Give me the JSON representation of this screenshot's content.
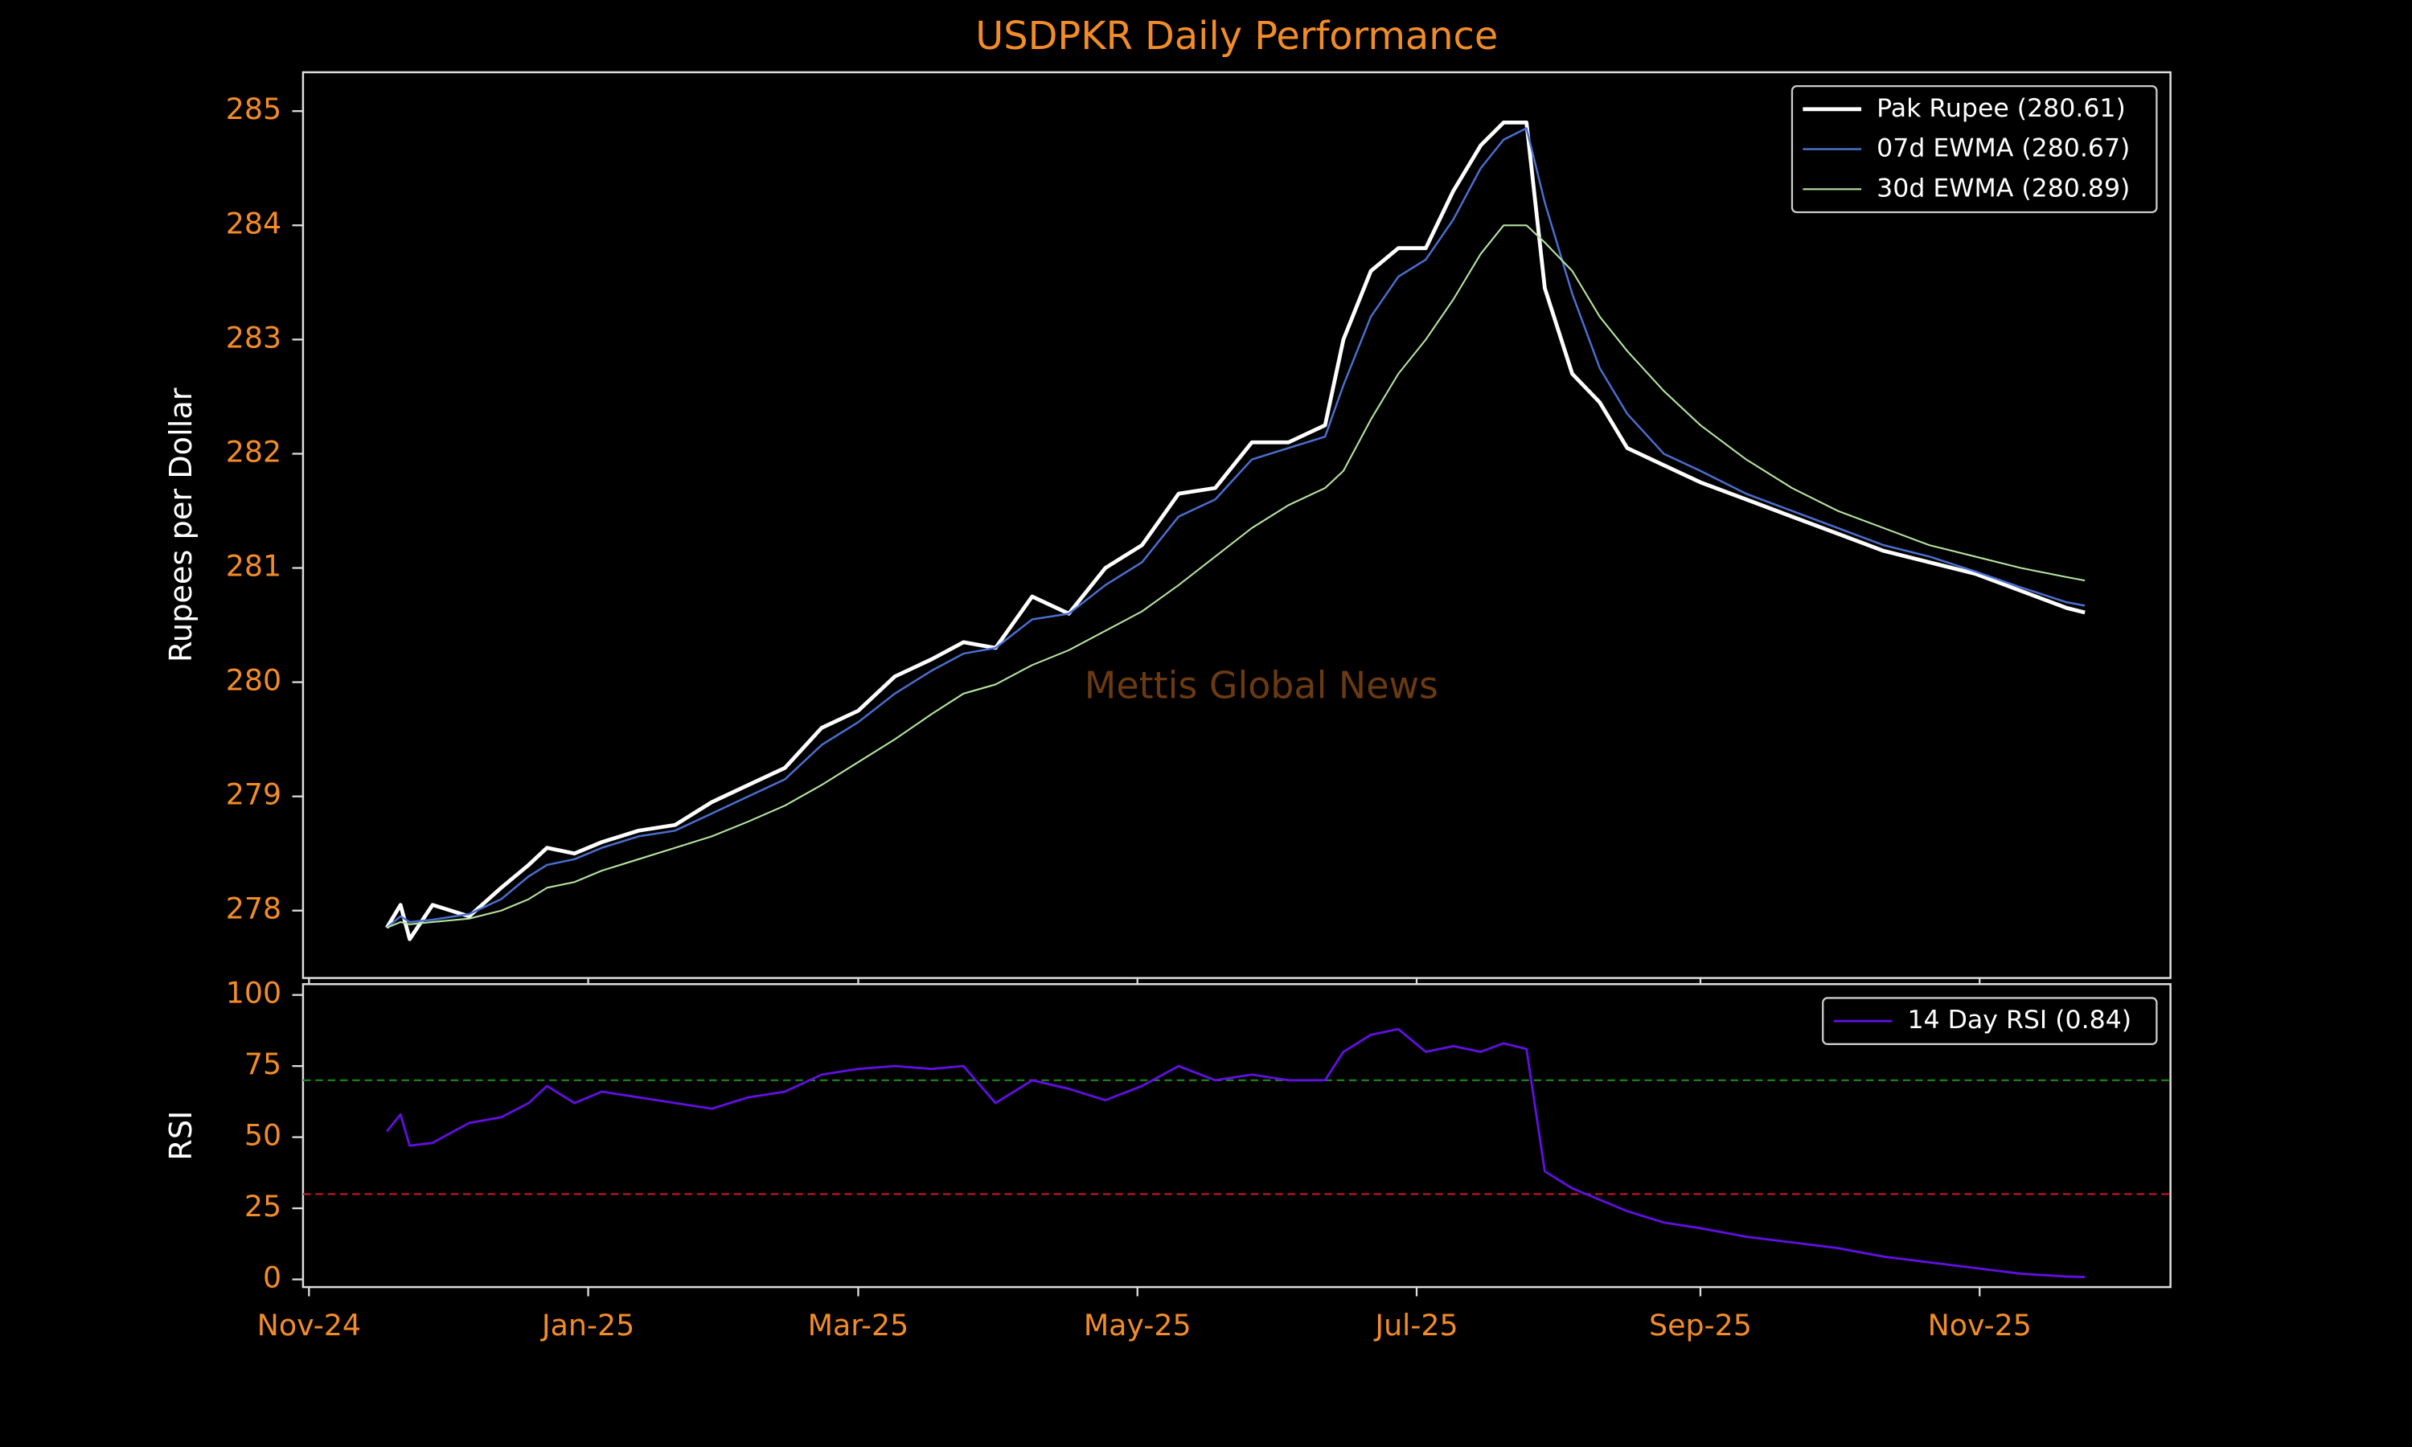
{
  "chart_data": [
    {
      "type": "line",
      "title": "USDPKR Daily Performance",
      "ylabel": "Rupees per Dollar",
      "annotation": "Mettis Global News",
      "x": [
        17,
        20,
        22,
        27,
        35,
        42,
        48,
        52,
        58,
        64,
        72,
        80,
        88,
        96,
        104,
        112,
        120,
        128,
        136,
        143,
        150,
        158,
        166,
        174,
        182,
        190,
        198,
        206,
        214,
        222,
        226,
        232,
        238,
        244,
        250,
        256,
        261,
        266,
        270,
        276,
        282,
        288,
        296,
        304,
        314,
        324,
        334,
        344,
        354,
        364,
        374,
        384,
        388
      ],
      "xlim": [
        -1.3,
        406.7
      ],
      "ylim": [
        277.41,
        285.34
      ],
      "yticks": [
        278,
        279,
        280,
        281,
        282,
        283,
        284,
        285
      ],
      "legend": "upper right",
      "series": [
        {
          "name": "Pak Rupee (280.61)",
          "color": "#ffffff",
          "width": 2.5,
          "values": [
            277.85,
            278.05,
            277.75,
            278.05,
            277.95,
            278.2,
            278.4,
            278.55,
            278.5,
            278.6,
            278.7,
            278.75,
            278.95,
            279.1,
            279.25,
            279.6,
            279.75,
            280.05,
            280.2,
            280.35,
            280.3,
            280.75,
            280.6,
            281.0,
            281.2,
            281.65,
            281.7,
            282.1,
            282.1,
            282.25,
            283.0,
            283.6,
            283.8,
            283.8,
            284.3,
            284.7,
            284.9,
            284.9,
            283.45,
            282.7,
            282.45,
            282.05,
            281.9,
            281.75,
            281.6,
            281.45,
            281.3,
            281.15,
            281.05,
            280.95,
            280.8,
            280.65,
            280.61
          ]
        },
        {
          "name": "07d EWMA (280.67)",
          "color": "#4a6fd0",
          "width": 1.3,
          "values": [
            277.85,
            277.95,
            277.9,
            277.92,
            277.97,
            278.1,
            278.3,
            278.4,
            278.45,
            278.55,
            278.65,
            278.7,
            278.85,
            279.0,
            279.15,
            279.45,
            279.65,
            279.9,
            280.1,
            280.25,
            280.3,
            280.55,
            280.6,
            280.85,
            281.05,
            281.45,
            281.6,
            281.95,
            282.05,
            282.15,
            282.6,
            283.2,
            283.55,
            283.7,
            284.05,
            284.5,
            284.75,
            284.85,
            284.2,
            283.4,
            282.75,
            282.35,
            282.0,
            281.85,
            281.65,
            281.5,
            281.35,
            281.2,
            281.1,
            280.97,
            280.83,
            280.7,
            280.67
          ]
        },
        {
          "name": "30d EWMA (280.89)",
          "color": "#b5e3a0",
          "width": 1.1,
          "values": [
            277.85,
            277.9,
            277.88,
            277.9,
            277.93,
            278.0,
            278.1,
            278.2,
            278.25,
            278.35,
            278.45,
            278.55,
            278.65,
            278.78,
            278.92,
            279.1,
            279.3,
            279.5,
            279.72,
            279.9,
            279.98,
            280.15,
            280.28,
            280.45,
            280.62,
            280.85,
            281.1,
            281.35,
            281.55,
            281.7,
            281.85,
            282.3,
            282.7,
            283.0,
            283.35,
            283.75,
            284.0,
            284.0,
            283.85,
            283.6,
            283.2,
            282.9,
            282.55,
            282.25,
            281.95,
            281.7,
            281.5,
            281.35,
            281.2,
            281.1,
            281.0,
            280.92,
            280.89
          ]
        }
      ]
    },
    {
      "type": "line",
      "ylabel": "RSI",
      "x": [
        17,
        20,
        22,
        27,
        35,
        42,
        48,
        52,
        58,
        64,
        72,
        80,
        88,
        96,
        104,
        112,
        120,
        128,
        136,
        143,
        150,
        158,
        166,
        174,
        182,
        190,
        198,
        206,
        214,
        222,
        226,
        232,
        238,
        244,
        250,
        256,
        261,
        266,
        270,
        276,
        282,
        288,
        296,
        304,
        314,
        324,
        334,
        344,
        354,
        364,
        374,
        384,
        388
      ],
      "xlim": [
        -1.3,
        406.7
      ],
      "ylim": [
        -2.7,
        103.8
      ],
      "yticks": [
        0,
        25,
        50,
        75,
        100
      ],
      "xticks": [
        {
          "value": 0,
          "label": "Nov-24"
        },
        {
          "value": 61,
          "label": "Jan-25"
        },
        {
          "value": 120,
          "label": "Mar-25"
        },
        {
          "value": 181,
          "label": "May-25"
        },
        {
          "value": 242,
          "label": "Jul-25"
        },
        {
          "value": 304,
          "label": "Sep-25"
        },
        {
          "value": 365,
          "label": "Nov-25"
        }
      ],
      "legend": "upper right",
      "hlines": [
        {
          "value": 70,
          "color": "#1d7a1d"
        },
        {
          "value": 30,
          "color": "#c0142a"
        }
      ],
      "series": [
        {
          "name": "14 Day RSI (0.84)",
          "color": "#6010e0",
          "width": 1.5,
          "values": [
            52,
            58,
            47,
            48,
            55,
            57,
            62,
            68,
            62,
            66,
            64,
            62,
            60,
            64,
            66,
            72,
            74,
            75,
            74,
            75,
            62,
            70,
            67,
            63,
            68,
            75,
            70,
            72,
            70,
            70,
            80,
            86,
            88,
            80,
            82,
            80,
            83,
            81,
            38,
            32,
            28,
            24,
            20,
            18,
            15,
            13,
            11,
            8,
            6,
            4,
            2,
            1,
            0.84
          ]
        }
      ]
    }
  ]
}
